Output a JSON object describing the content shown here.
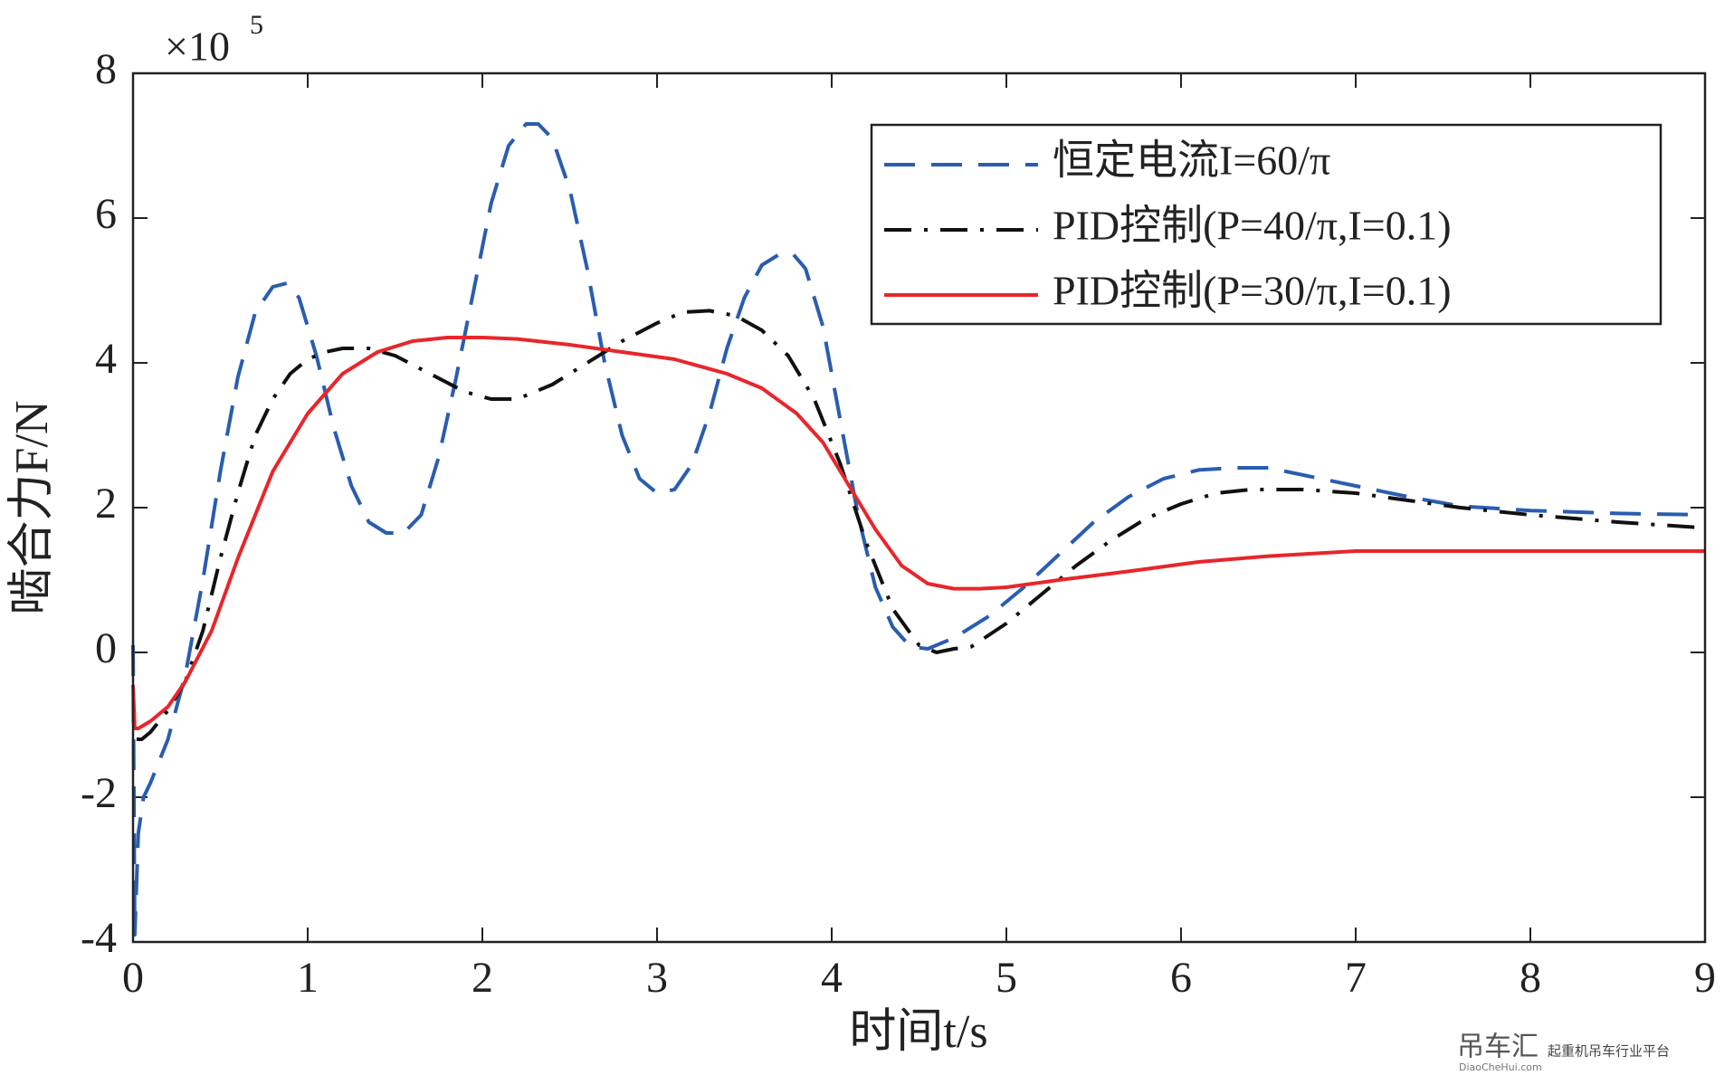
{
  "chart_data": {
    "type": "line",
    "xlabel": "时间t/s",
    "ylabel": "啮合力F/N",
    "y_multiplier": "×10",
    "y_multiplier_exponent": "5",
    "xlim": [
      0,
      9
    ],
    "xticks": [
      0,
      1,
      2,
      3,
      4,
      5,
      6,
      7,
      8,
      9
    ],
    "ylim": [
      -4,
      8
    ],
    "yticks": [
      -4,
      -2,
      0,
      2,
      4,
      6,
      8
    ],
    "legend_loc": "upper right",
    "watermark": "吊车汇",
    "watermark_url": "DiaoCheHui.com",
    "watermark_slogan": "起重机吊车行业平台",
    "series": [
      {
        "name": "恒定电流I=60/π",
        "color": "#2a5db0",
        "linestyle": "dashed",
        "x": [
          0,
          0.01,
          0.03,
          0.06,
          0.1,
          0.2,
          0.3,
          0.4,
          0.5,
          0.6,
          0.7,
          0.8,
          0.88,
          0.95,
          1.05,
          1.15,
          1.25,
          1.35,
          1.45,
          1.55,
          1.65,
          1.75,
          1.85,
          1.95,
          2.05,
          2.15,
          2.25,
          2.32,
          2.4,
          2.5,
          2.6,
          2.7,
          2.8,
          2.9,
          3.0,
          3.1,
          3.2,
          3.3,
          3.4,
          3.5,
          3.6,
          3.7,
          3.78,
          3.85,
          3.95,
          4.05,
          4.15,
          4.25,
          4.35,
          4.45,
          4.55,
          4.7,
          4.9,
          5.1,
          5.3,
          5.5,
          5.7,
          5.9,
          6.1,
          6.3,
          6.5,
          6.7,
          7.0,
          7.3,
          7.6,
          8.0,
          8.5,
          9
        ],
        "values": [
          0.1,
          -3.9,
          -2.5,
          -2.0,
          -1.8,
          -1.2,
          -0.3,
          1.0,
          2.5,
          3.8,
          4.7,
          5.05,
          5.1,
          4.9,
          4.1,
          3.1,
          2.3,
          1.8,
          1.65,
          1.65,
          1.9,
          2.7,
          3.8,
          5.0,
          6.2,
          7.0,
          7.3,
          7.3,
          7.1,
          6.4,
          5.3,
          4.0,
          3.0,
          2.4,
          2.2,
          2.25,
          2.6,
          3.3,
          4.2,
          4.9,
          5.35,
          5.5,
          5.5,
          5.3,
          4.5,
          3.2,
          1.9,
          0.9,
          0.35,
          0.08,
          0.05,
          0.2,
          0.5,
          0.9,
          1.35,
          1.8,
          2.15,
          2.4,
          2.52,
          2.55,
          2.55,
          2.45,
          2.3,
          2.15,
          2.02,
          1.96,
          1.92,
          1.9
        ]
      },
      {
        "name": "PID控制(P=40/π,I=0.1)",
        "color": "#111111",
        "linestyle": "dashdot",
        "x": [
          0.02,
          0.05,
          0.1,
          0.2,
          0.3,
          0.4,
          0.5,
          0.6,
          0.7,
          0.8,
          0.9,
          1.0,
          1.1,
          1.2,
          1.35,
          1.5,
          1.7,
          1.9,
          2.05,
          2.2,
          2.4,
          2.6,
          2.8,
          3.0,
          3.15,
          3.3,
          3.45,
          3.6,
          3.75,
          3.9,
          4.05,
          4.2,
          4.35,
          4.5,
          4.6,
          4.7,
          4.8,
          5.0,
          5.2,
          5.4,
          5.6,
          5.8,
          6.0,
          6.2,
          6.4,
          6.7,
          7.0,
          7.3,
          7.6,
          8.0,
          8.5,
          9
        ],
        "values": [
          -1.2,
          -1.2,
          -1.1,
          -0.8,
          -0.4,
          0.3,
          1.3,
          2.2,
          3.0,
          3.5,
          3.85,
          4.05,
          4.15,
          4.2,
          4.2,
          4.1,
          3.85,
          3.6,
          3.5,
          3.5,
          3.7,
          4.0,
          4.3,
          4.55,
          4.7,
          4.72,
          4.65,
          4.45,
          4.1,
          3.5,
          2.6,
          1.5,
          0.6,
          0.1,
          0.0,
          0.05,
          0.08,
          0.4,
          0.8,
          1.2,
          1.55,
          1.85,
          2.05,
          2.2,
          2.25,
          2.25,
          2.2,
          2.1,
          2.0,
          1.9,
          1.8,
          1.72
        ]
      },
      {
        "name": "PID控制(P=30/π,I=0.1)",
        "color": "#e8262b",
        "linestyle": "solid",
        "x": [
          0,
          0.01,
          0.03,
          0.1,
          0.2,
          0.3,
          0.45,
          0.6,
          0.8,
          1.0,
          1.2,
          1.4,
          1.6,
          1.8,
          2.0,
          2.2,
          2.5,
          2.8,
          3.1,
          3.4,
          3.6,
          3.8,
          3.95,
          4.1,
          4.25,
          4.4,
          4.55,
          4.7,
          4.85,
          5.0,
          5.3,
          5.7,
          6.1,
          6.5,
          7.0,
          7.5,
          8.0,
          9
        ],
        "values": [
          -0.45,
          -1.05,
          -1.05,
          -0.95,
          -0.75,
          -0.4,
          0.3,
          1.3,
          2.5,
          3.3,
          3.85,
          4.15,
          4.3,
          4.35,
          4.35,
          4.33,
          4.25,
          4.15,
          4.05,
          3.85,
          3.65,
          3.3,
          2.9,
          2.3,
          1.7,
          1.2,
          0.95,
          0.88,
          0.88,
          0.9,
          1.0,
          1.12,
          1.25,
          1.33,
          1.4,
          1.4,
          1.4,
          1.4
        ]
      }
    ]
  }
}
